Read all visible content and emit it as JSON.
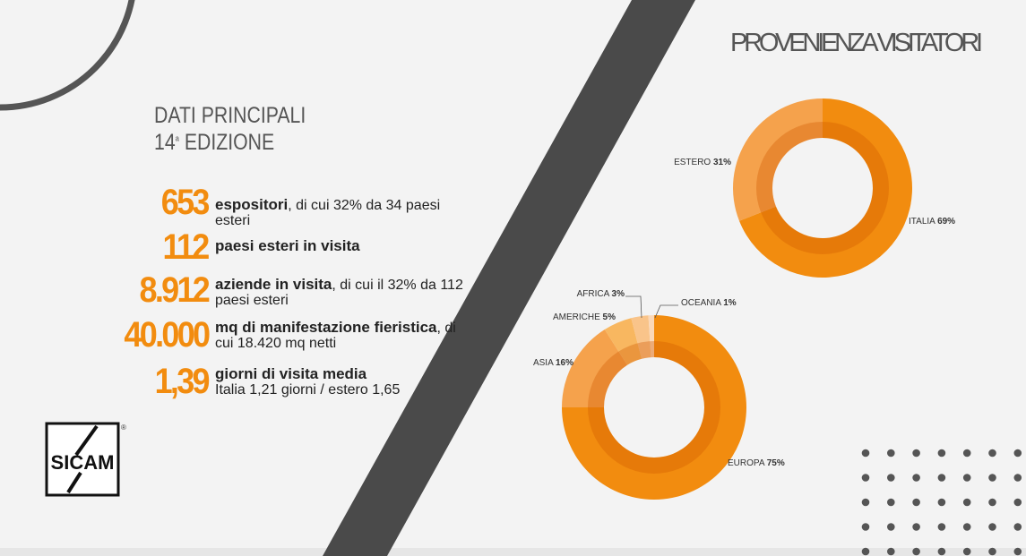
{
  "header": {
    "title_line1": "DATI PRINCIPALI",
    "edition_number": "14",
    "edition_sup": "a",
    "edition_word": "EDIZIONE"
  },
  "stats": [
    {
      "number": "653",
      "bold": "espositori",
      "rest": ", di cui 32% da 34 paesi esteri"
    },
    {
      "number": "112",
      "bold": "paesi esteri in visita",
      "rest": ""
    },
    {
      "number": "8.912",
      "bold": "aziende in visita",
      "rest": ", di cui il 32% da 112 paesi esteri"
    },
    {
      "number": "40.000",
      "bold": "mq di manifestazione fieristica",
      "rest": ", di cui 18.420 mq netti"
    },
    {
      "number": "1,39",
      "bold": "giorni di visita media",
      "rest": "Italia 1,21 giorni / estero 1,65"
    }
  ],
  "logo": {
    "text": "SICAM",
    "mark": "®"
  },
  "section_title": "PROVENIENZA VISITATORI",
  "chart_data": [
    {
      "type": "donut",
      "categories": [
        "ITALIA",
        "ESTERO"
      ],
      "values": [
        69,
        31
      ],
      "value_labels": [
        "69%",
        "31%"
      ],
      "colors": [
        "#f28c0f",
        "#f5a24c"
      ]
    },
    {
      "type": "donut",
      "categories": [
        "EUROPA",
        "ASIA",
        "AMERICHE",
        "AFRICA",
        "OCEANIA"
      ],
      "values": [
        75,
        16,
        5,
        3,
        1
      ],
      "value_labels": [
        "75%",
        "16%",
        "5%",
        "3%",
        "1%"
      ],
      "colors": [
        "#f28c0f",
        "#f5a24c",
        "#f8b760",
        "#f9c48a",
        "#fbd8b8"
      ]
    }
  ]
}
